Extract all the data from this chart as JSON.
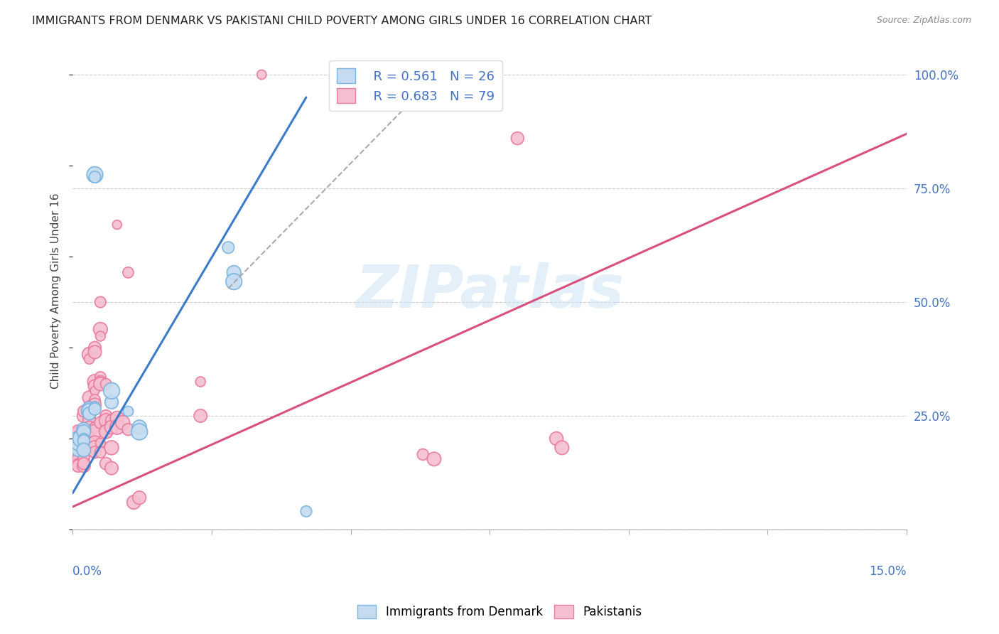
{
  "title": "IMMIGRANTS FROM DENMARK VS PAKISTANI CHILD POVERTY AMONG GIRLS UNDER 16 CORRELATION CHART",
  "source": "Source: ZipAtlas.com",
  "ylabel": "Child Poverty Among Girls Under 16",
  "xlim": [
    0.0,
    0.15
  ],
  "ylim": [
    0.0,
    1.05
  ],
  "yticks": [
    0.0,
    0.25,
    0.5,
    0.75,
    1.0
  ],
  "ytick_labels": [
    "",
    "25.0%",
    "50.0%",
    "75.0%",
    "100.0%"
  ],
  "xticks": [
    0.0,
    0.025,
    0.05,
    0.075,
    0.1,
    0.125,
    0.15
  ],
  "watermark": "ZIPatlas",
  "blue_color": "#7ab4e0",
  "blue_fill": "#c5dcf0",
  "pink_color": "#e87ca0",
  "pink_fill": "#f5bfd0",
  "axis_label_color": "#4472c4",
  "blue_scatter": [
    [
      0.001,
      0.195
    ],
    [
      0.001,
      0.185
    ],
    [
      0.001,
      0.175
    ],
    [
      0.001,
      0.19
    ],
    [
      0.0015,
      0.2
    ],
    [
      0.002,
      0.22
    ],
    [
      0.002,
      0.215
    ],
    [
      0.002,
      0.2
    ],
    [
      0.002,
      0.195
    ],
    [
      0.002,
      0.175
    ],
    [
      0.003,
      0.265
    ],
    [
      0.003,
      0.26
    ],
    [
      0.003,
      0.255
    ],
    [
      0.004,
      0.27
    ],
    [
      0.004,
      0.265
    ],
    [
      0.004,
      0.78
    ],
    [
      0.004,
      0.775
    ],
    [
      0.007,
      0.28
    ],
    [
      0.007,
      0.305
    ],
    [
      0.01,
      0.26
    ],
    [
      0.012,
      0.225
    ],
    [
      0.012,
      0.215
    ],
    [
      0.028,
      0.62
    ],
    [
      0.029,
      0.565
    ],
    [
      0.029,
      0.545
    ],
    [
      0.042,
      0.04
    ]
  ],
  "pink_scatter": [
    [
      0.001,
      0.195
    ],
    [
      0.001,
      0.175
    ],
    [
      0.001,
      0.165
    ],
    [
      0.001,
      0.155
    ],
    [
      0.001,
      0.145
    ],
    [
      0.001,
      0.18
    ],
    [
      0.001,
      0.185
    ],
    [
      0.001,
      0.19
    ],
    [
      0.001,
      0.2
    ],
    [
      0.001,
      0.21
    ],
    [
      0.001,
      0.215
    ],
    [
      0.001,
      0.205
    ],
    [
      0.001,
      0.14
    ],
    [
      0.002,
      0.22
    ],
    [
      0.002,
      0.175
    ],
    [
      0.002,
      0.155
    ],
    [
      0.002,
      0.14
    ],
    [
      0.002,
      0.16
    ],
    [
      0.002,
      0.145
    ],
    [
      0.002,
      0.25
    ],
    [
      0.002,
      0.26
    ],
    [
      0.003,
      0.385
    ],
    [
      0.003,
      0.375
    ],
    [
      0.003,
      0.29
    ],
    [
      0.003,
      0.27
    ],
    [
      0.003,
      0.245
    ],
    [
      0.003,
      0.24
    ],
    [
      0.003,
      0.225
    ],
    [
      0.003,
      0.215
    ],
    [
      0.003,
      0.205
    ],
    [
      0.003,
      0.195
    ],
    [
      0.003,
      0.19
    ],
    [
      0.004,
      0.4
    ],
    [
      0.004,
      0.39
    ],
    [
      0.004,
      0.325
    ],
    [
      0.004,
      0.315
    ],
    [
      0.004,
      0.305
    ],
    [
      0.004,
      0.285
    ],
    [
      0.004,
      0.275
    ],
    [
      0.004,
      0.225
    ],
    [
      0.004,
      0.215
    ],
    [
      0.004,
      0.19
    ],
    [
      0.004,
      0.18
    ],
    [
      0.004,
      0.17
    ],
    [
      0.005,
      0.44
    ],
    [
      0.005,
      0.425
    ],
    [
      0.005,
      0.335
    ],
    [
      0.005,
      0.325
    ],
    [
      0.005,
      0.32
    ],
    [
      0.005,
      0.235
    ],
    [
      0.005,
      0.19
    ],
    [
      0.005,
      0.17
    ],
    [
      0.005,
      0.5
    ],
    [
      0.006,
      0.32
    ],
    [
      0.006,
      0.225
    ],
    [
      0.006,
      0.215
    ],
    [
      0.006,
      0.25
    ],
    [
      0.006,
      0.24
    ],
    [
      0.006,
      0.215
    ],
    [
      0.006,
      0.145
    ],
    [
      0.007,
      0.24
    ],
    [
      0.007,
      0.225
    ],
    [
      0.007,
      0.18
    ],
    [
      0.007,
      0.135
    ],
    [
      0.008,
      0.245
    ],
    [
      0.008,
      0.225
    ],
    [
      0.008,
      0.67
    ],
    [
      0.009,
      0.235
    ],
    [
      0.01,
      0.565
    ],
    [
      0.01,
      0.22
    ],
    [
      0.011,
      0.06
    ],
    [
      0.012,
      0.07
    ],
    [
      0.023,
      0.325
    ],
    [
      0.023,
      0.25
    ],
    [
      0.034,
      1.0
    ],
    [
      0.063,
      0.165
    ],
    [
      0.065,
      0.155
    ],
    [
      0.066,
      1.0
    ],
    [
      0.08,
      0.86
    ],
    [
      0.087,
      0.2
    ],
    [
      0.088,
      0.18
    ]
  ],
  "blue_line_x": [
    0.0,
    0.042
  ],
  "blue_line_y": [
    0.08,
    0.95
  ],
  "pink_line_x": [
    0.0,
    0.15
  ],
  "pink_line_y": [
    0.05,
    0.87
  ],
  "gray_line_x": [
    0.028,
    0.068
  ],
  "gray_line_y": [
    0.53,
    1.03
  ]
}
